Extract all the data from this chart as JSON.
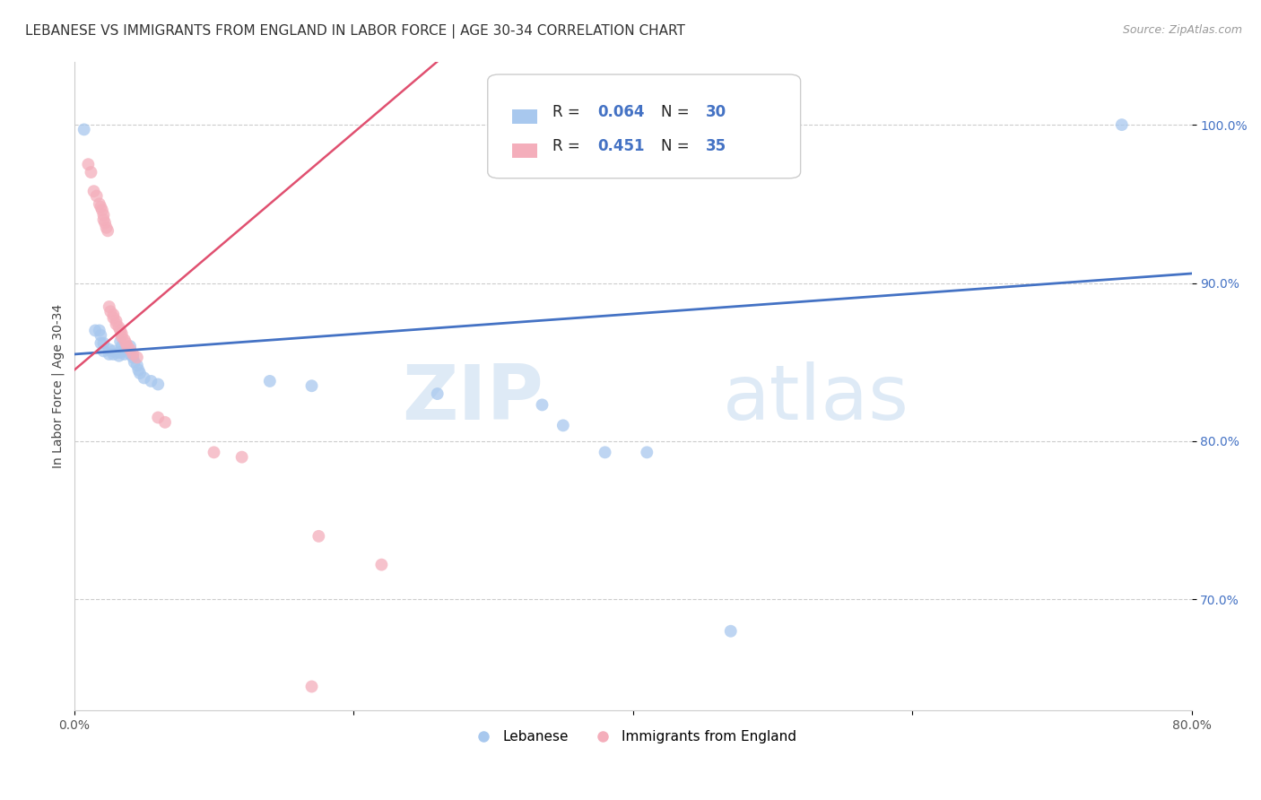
{
  "title": "LEBANESE VS IMMIGRANTS FROM ENGLAND IN LABOR FORCE | AGE 30-34 CORRELATION CHART",
  "source": "Source: ZipAtlas.com",
  "ylabel": "In Labor Force | Age 30-34",
  "xlim": [
    0.0,
    0.8
  ],
  "ylim": [
    0.63,
    1.04
  ],
  "xtick_positions": [
    0.0,
    0.2,
    0.4,
    0.6,
    0.8
  ],
  "xtick_labels": [
    "0.0%",
    "",
    "",
    "",
    "80.0%"
  ],
  "ytick_vals": [
    1.0,
    0.9,
    0.8,
    0.7
  ],
  "ytick_labels": [
    "100.0%",
    "90.0%",
    "80.0%",
    "70.0%"
  ],
  "watermark_zip": "ZIP",
  "watermark_atlas": "atlas",
  "legend_labels": [
    "Lebanese",
    "Immigrants from England"
  ],
  "blue_color": "#A8C8EE",
  "pink_color": "#F4AEBB",
  "blue_line_color": "#4472C4",
  "pink_line_color": "#E05070",
  "blue_line": [
    [
      0.0,
      0.855
    ],
    [
      0.8,
      0.906
    ]
  ],
  "pink_line": [
    [
      0.0,
      0.845
    ],
    [
      0.26,
      1.04
    ]
  ],
  "blue_scatter": [
    [
      0.007,
      0.997
    ],
    [
      0.015,
      0.87
    ],
    [
      0.018,
      0.87
    ],
    [
      0.019,
      0.867
    ],
    [
      0.019,
      0.862
    ],
    [
      0.021,
      0.862
    ],
    [
      0.021,
      0.857
    ],
    [
      0.025,
      0.858
    ],
    [
      0.025,
      0.855
    ],
    [
      0.028,
      0.857
    ],
    [
      0.028,
      0.855
    ],
    [
      0.032,
      0.856
    ],
    [
      0.032,
      0.854
    ],
    [
      0.033,
      0.863
    ],
    [
      0.034,
      0.86
    ],
    [
      0.035,
      0.857
    ],
    [
      0.036,
      0.855
    ],
    [
      0.04,
      0.86
    ],
    [
      0.04,
      0.855
    ],
    [
      0.042,
      0.853
    ],
    [
      0.043,
      0.85
    ],
    [
      0.045,
      0.848
    ],
    [
      0.046,
      0.845
    ],
    [
      0.047,
      0.843
    ],
    [
      0.05,
      0.84
    ],
    [
      0.055,
      0.838
    ],
    [
      0.06,
      0.836
    ],
    [
      0.14,
      0.838
    ],
    [
      0.17,
      0.835
    ],
    [
      0.26,
      0.83
    ],
    [
      0.335,
      0.823
    ],
    [
      0.35,
      0.81
    ],
    [
      0.38,
      0.793
    ],
    [
      0.41,
      0.793
    ],
    [
      0.47,
      0.68
    ],
    [
      0.75,
      1.0
    ]
  ],
  "pink_scatter": [
    [
      0.01,
      0.975
    ],
    [
      0.012,
      0.97
    ],
    [
      0.014,
      0.958
    ],
    [
      0.016,
      0.955
    ],
    [
      0.018,
      0.95
    ],
    [
      0.019,
      0.948
    ],
    [
      0.02,
      0.946
    ],
    [
      0.021,
      0.943
    ],
    [
      0.021,
      0.94
    ],
    [
      0.022,
      0.938
    ],
    [
      0.023,
      0.935
    ],
    [
      0.024,
      0.933
    ],
    [
      0.025,
      0.885
    ],
    [
      0.026,
      0.882
    ],
    [
      0.028,
      0.88
    ],
    [
      0.028,
      0.878
    ],
    [
      0.03,
      0.876
    ],
    [
      0.03,
      0.874
    ],
    [
      0.032,
      0.872
    ],
    [
      0.033,
      0.87
    ],
    [
      0.034,
      0.868
    ],
    [
      0.034,
      0.866
    ],
    [
      0.036,
      0.864
    ],
    [
      0.037,
      0.862
    ],
    [
      0.038,
      0.86
    ],
    [
      0.04,
      0.858
    ],
    [
      0.042,
      0.855
    ],
    [
      0.045,
      0.853
    ],
    [
      0.06,
      0.815
    ],
    [
      0.065,
      0.812
    ],
    [
      0.1,
      0.793
    ],
    [
      0.12,
      0.79
    ],
    [
      0.175,
      0.74
    ],
    [
      0.22,
      0.722
    ],
    [
      0.17,
      0.645
    ]
  ],
  "background_color": "#FFFFFF",
  "grid_color": "#CCCCCC"
}
